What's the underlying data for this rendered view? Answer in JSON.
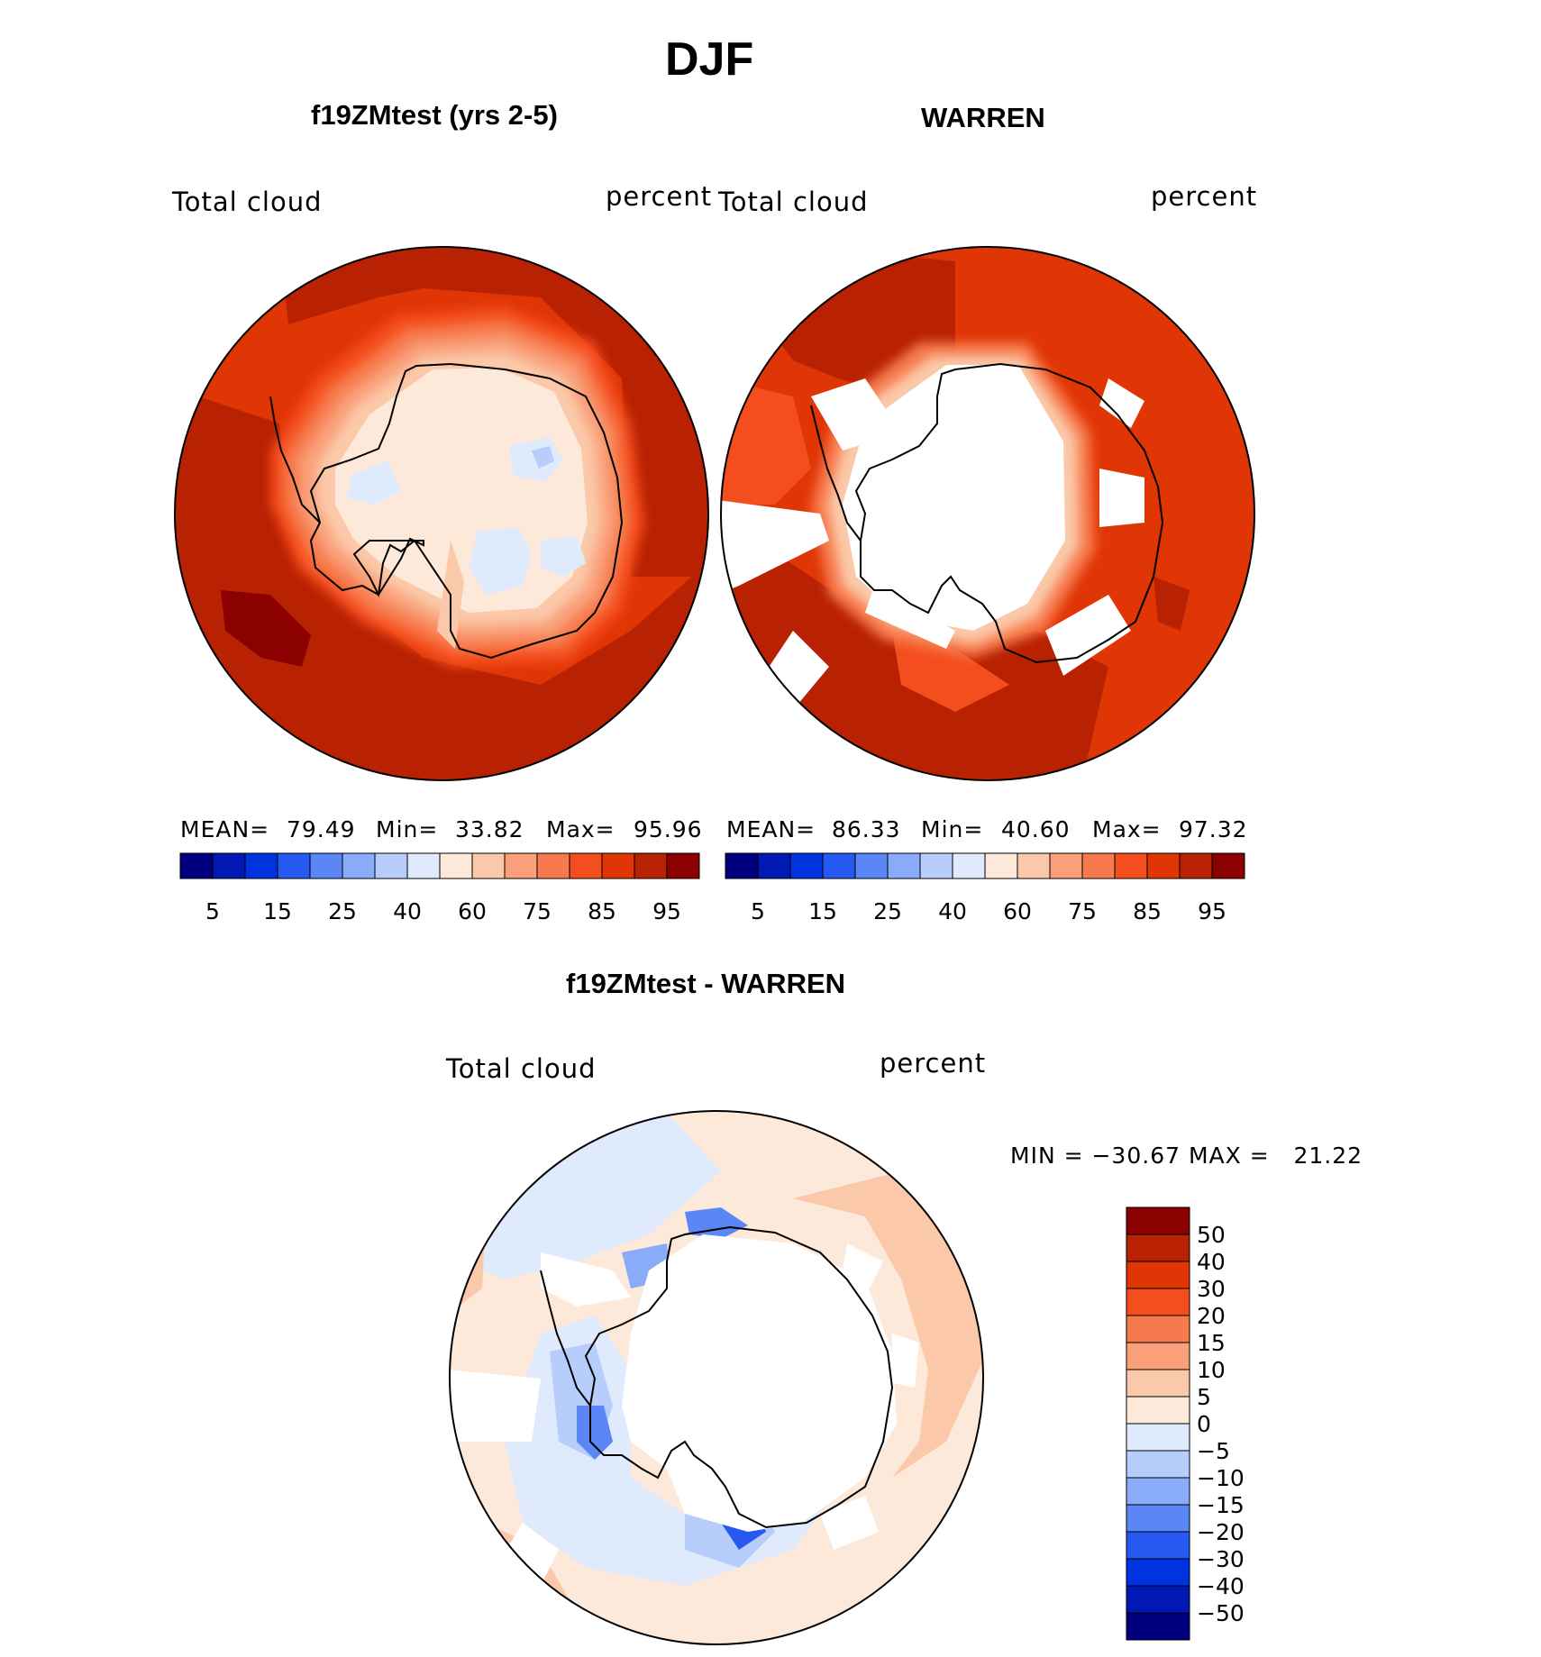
{
  "page_title": "DJF",
  "panels": {
    "left": {
      "title": "f19ZMtest (yrs 2-5)",
      "var_label": "Total cloud",
      "unit_label": "percent",
      "mean_label": "MEAN=",
      "mean": "79.49",
      "min_label": "Min=",
      "min": "33.82",
      "max_label": "Max=",
      "max": "95.96"
    },
    "right": {
      "title": "WARREN",
      "var_label": "Total cloud",
      "unit_label": "percent",
      "mean_label": "MEAN=",
      "mean": "86.33",
      "min_label": "Min=",
      "min": "40.60",
      "max_label": "Max=",
      "max": "97.32"
    },
    "diff": {
      "title": "f19ZMtest - WARREN",
      "var_label": "Total cloud",
      "unit_label": "percent",
      "minmax_text": "MIN = −30.67 MAX =   21.22"
    }
  },
  "colorbar_abs": {
    "colors": [
      "#00007f",
      "#0018b4",
      "#0033e0",
      "#2659f2",
      "#5a86f6",
      "#8aabfa",
      "#b7cdfb",
      "#dfeafd",
      "#fde9d9",
      "#fbc9a9",
      "#f9a07a",
      "#f77a4e",
      "#f44d1e",
      "#e03505",
      "#b82102",
      "#8b0000"
    ],
    "labels": [
      "5",
      "15",
      "25",
      "40",
      "60",
      "75",
      "85",
      "95"
    ]
  },
  "colorbar_diff": {
    "colors_top_to_bottom": [
      "#8b0000",
      "#b82102",
      "#e03505",
      "#f44d1e",
      "#f77a4e",
      "#f9a07a",
      "#fbc9a9",
      "#fde9d9",
      "#dfeafd",
      "#b7cdfb",
      "#8aabfa",
      "#5a86f6",
      "#2659f2",
      "#0033e0",
      "#0018b4",
      "#00007f"
    ],
    "labels_top_to_bottom": [
      "50",
      "40",
      "30",
      "20",
      "15",
      "10",
      "5",
      "0",
      "−5",
      "−10",
      "−15",
      "−20",
      "−30",
      "−40",
      "−50"
    ]
  },
  "chart_data": [
    {
      "type": "heatmap",
      "title": "f19ZMtest (yrs 2-5)",
      "projection": "south polar stereographic",
      "variable": "Total cloud",
      "units": "percent",
      "mean": 79.49,
      "min": 33.82,
      "max": 95.96,
      "levels": [
        5,
        10,
        15,
        20,
        25,
        30,
        40,
        50,
        60,
        70,
        75,
        80,
        85,
        90,
        95
      ]
    },
    {
      "type": "heatmap",
      "title": "WARREN",
      "projection": "south polar stereographic",
      "variable": "Total cloud",
      "units": "percent",
      "mean": 86.33,
      "min": 40.6,
      "max": 97.32,
      "levels": [
        5,
        10,
        15,
        20,
        25,
        30,
        40,
        50,
        60,
        70,
        75,
        80,
        85,
        90,
        95
      ]
    },
    {
      "type": "heatmap",
      "title": "f19ZMtest - WARREN",
      "projection": "south polar stereographic",
      "variable": "Total cloud",
      "units": "percent",
      "min": -30.67,
      "max": 21.22,
      "levels": [
        -50,
        -40,
        -30,
        -20,
        -15,
        -10,
        -5,
        0,
        5,
        10,
        15,
        20,
        30,
        40,
        50
      ]
    }
  ]
}
